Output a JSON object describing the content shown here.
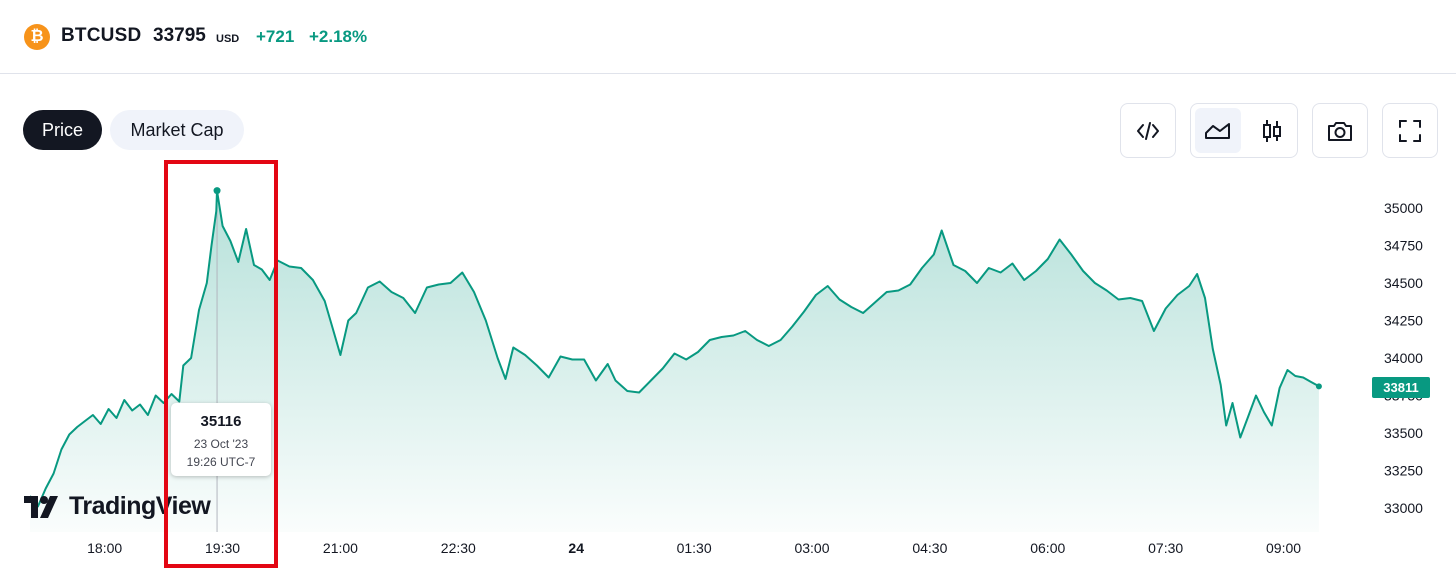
{
  "header": {
    "symbol": "BTCUSD",
    "price": "33795",
    "currency": "USD",
    "change": "+721",
    "change_pct": "+2.18%"
  },
  "tabs": [
    {
      "label": "Price",
      "active": true
    },
    {
      "label": "Market Cap",
      "active": false
    }
  ],
  "toolbar": {
    "embed_icon": "code-icon",
    "area_icon": "area-chart-icon",
    "candle_icon": "candlestick-icon",
    "snapshot_icon": "camera-icon",
    "fullscreen_icon": "fullscreen-icon"
  },
  "colors": {
    "line": "#089981",
    "fill": "#cdeee6",
    "highlight": "#e30613",
    "coin": "#f7931a"
  },
  "tooltip": {
    "value": "35116",
    "date": "23 Oct '23",
    "time": "19:26 UTC-7"
  },
  "last_price_badge": "33811",
  "logo": "TradingView",
  "chart_data": {
    "type": "area",
    "x_tick_labels": [
      "18:00",
      "19:30",
      "21:00",
      "22:30",
      "24",
      "01:30",
      "03:00",
      "04:30",
      "06:00",
      "07:30",
      "09:00"
    ],
    "y_tick_labels": [
      "35000",
      "34750",
      "34500",
      "34250",
      "34000",
      "33750",
      "33500",
      "33250",
      "33000"
    ],
    "ylim": [
      33000,
      35000
    ],
    "xlim_hours": [
      17.05,
      34.1
    ],
    "series": [
      {
        "points": [
          [
            17.05,
            33080
          ],
          [
            17.15,
            33010
          ],
          [
            17.25,
            33130
          ],
          [
            17.35,
            33230
          ],
          [
            17.45,
            33390
          ],
          [
            17.55,
            33490
          ],
          [
            17.65,
            33540
          ],
          [
            17.75,
            33580
          ],
          [
            17.85,
            33620
          ],
          [
            17.95,
            33560
          ],
          [
            18.05,
            33660
          ],
          [
            18.15,
            33600
          ],
          [
            18.25,
            33720
          ],
          [
            18.35,
            33650
          ],
          [
            18.45,
            33690
          ],
          [
            18.55,
            33620
          ],
          [
            18.65,
            33750
          ],
          [
            18.75,
            33700
          ],
          [
            18.85,
            33760
          ],
          [
            18.95,
            33710
          ],
          [
            19.0,
            33950
          ],
          [
            19.1,
            34000
          ],
          [
            19.2,
            34320
          ],
          [
            19.3,
            34500
          ],
          [
            19.36,
            34750
          ],
          [
            19.42,
            34980
          ],
          [
            19.43,
            35116
          ],
          [
            19.5,
            34880
          ],
          [
            19.6,
            34780
          ],
          [
            19.7,
            34640
          ],
          [
            19.8,
            34860
          ],
          [
            19.9,
            34620
          ],
          [
            20.0,
            34590
          ],
          [
            20.1,
            34520
          ],
          [
            20.2,
            34650
          ],
          [
            20.35,
            34610
          ],
          [
            20.5,
            34600
          ],
          [
            20.65,
            34520
          ],
          [
            20.8,
            34380
          ],
          [
            20.9,
            34200
          ],
          [
            21.0,
            34020
          ],
          [
            21.1,
            34250
          ],
          [
            21.2,
            34300
          ],
          [
            21.35,
            34470
          ],
          [
            21.5,
            34510
          ],
          [
            21.65,
            34440
          ],
          [
            21.8,
            34400
          ],
          [
            21.95,
            34300
          ],
          [
            22.1,
            34470
          ],
          [
            22.25,
            34490
          ],
          [
            22.4,
            34500
          ],
          [
            22.55,
            34570
          ],
          [
            22.7,
            34440
          ],
          [
            22.85,
            34250
          ],
          [
            23.0,
            34000
          ],
          [
            23.1,
            33860
          ],
          [
            23.2,
            34070
          ],
          [
            23.35,
            34020
          ],
          [
            23.5,
            33950
          ],
          [
            23.65,
            33870
          ],
          [
            23.8,
            34010
          ],
          [
            23.95,
            33990
          ],
          [
            24.1,
            33990
          ],
          [
            24.25,
            33850
          ],
          [
            24.4,
            33960
          ],
          [
            24.5,
            33850
          ],
          [
            24.65,
            33780
          ],
          [
            24.8,
            33770
          ],
          [
            24.95,
            33850
          ],
          [
            25.1,
            33930
          ],
          [
            25.25,
            34030
          ],
          [
            25.4,
            33990
          ],
          [
            25.55,
            34040
          ],
          [
            25.7,
            34120
          ],
          [
            25.85,
            34140
          ],
          [
            26.0,
            34150
          ],
          [
            26.15,
            34180
          ],
          [
            26.3,
            34120
          ],
          [
            26.45,
            34080
          ],
          [
            26.6,
            34120
          ],
          [
            26.75,
            34210
          ],
          [
            26.9,
            34310
          ],
          [
            27.05,
            34420
          ],
          [
            27.2,
            34480
          ],
          [
            27.35,
            34390
          ],
          [
            27.5,
            34340
          ],
          [
            27.65,
            34300
          ],
          [
            27.8,
            34370
          ],
          [
            27.95,
            34440
          ],
          [
            28.1,
            34450
          ],
          [
            28.25,
            34490
          ],
          [
            28.4,
            34600
          ],
          [
            28.55,
            34690
          ],
          [
            28.65,
            34850
          ],
          [
            28.8,
            34620
          ],
          [
            28.95,
            34580
          ],
          [
            29.1,
            34500
          ],
          [
            29.25,
            34600
          ],
          [
            29.4,
            34570
          ],
          [
            29.55,
            34630
          ],
          [
            29.7,
            34520
          ],
          [
            29.85,
            34580
          ],
          [
            30.0,
            34660
          ],
          [
            30.15,
            34790
          ],
          [
            30.3,
            34690
          ],
          [
            30.45,
            34580
          ],
          [
            30.6,
            34500
          ],
          [
            30.75,
            34450
          ],
          [
            30.9,
            34390
          ],
          [
            31.05,
            34400
          ],
          [
            31.2,
            34380
          ],
          [
            31.35,
            34180
          ],
          [
            31.5,
            34330
          ],
          [
            31.65,
            34420
          ],
          [
            31.8,
            34480
          ],
          [
            31.9,
            34560
          ],
          [
            32.0,
            34400
          ],
          [
            32.1,
            34060
          ],
          [
            32.2,
            33820
          ],
          [
            32.27,
            33550
          ],
          [
            32.35,
            33700
          ],
          [
            32.45,
            33470
          ],
          [
            32.55,
            33610
          ],
          [
            32.65,
            33750
          ],
          [
            32.75,
            33640
          ],
          [
            32.85,
            33550
          ],
          [
            32.95,
            33800
          ],
          [
            33.05,
            33920
          ],
          [
            33.15,
            33880
          ],
          [
            33.25,
            33870
          ],
          [
            33.35,
            33840
          ],
          [
            33.45,
            33811
          ]
        ]
      }
    ],
    "tooltip_point": {
      "x": 19.43,
      "y": 35116
    },
    "grid": false
  }
}
